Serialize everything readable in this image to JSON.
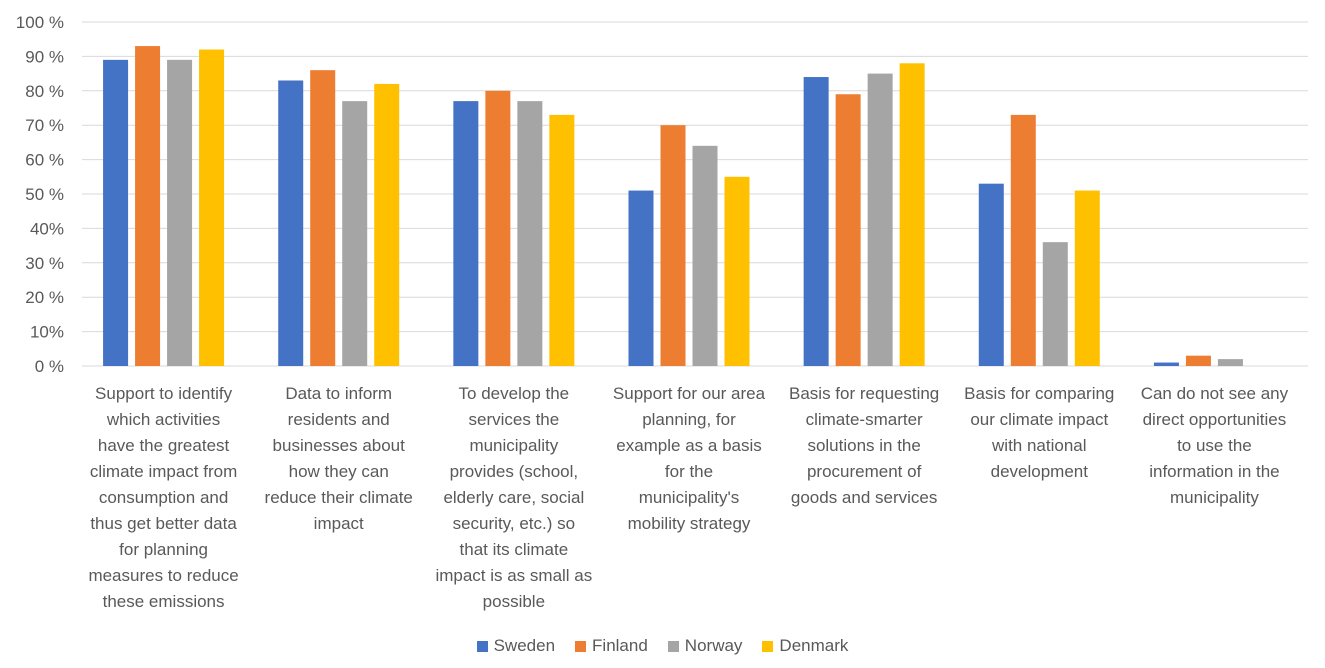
{
  "chart_data": {
    "type": "bar",
    "title": "",
    "xlabel": "",
    "ylabel": "",
    "ylim": [
      0,
      100
    ],
    "yticks": [
      "0 %",
      "10%",
      "20 %",
      "30 %",
      "40%",
      "50 %",
      "60 %",
      "70 %",
      "80 %",
      "90 %",
      "100 %"
    ],
    "grid": true,
    "legend_position": "bottom",
    "categories": [
      [
        "Support to identify",
        "which activities",
        "have the greatest",
        "climate impact from",
        "consumption and",
        "thus get better data",
        "for planning",
        "measures to reduce",
        "these emissions"
      ],
      [
        "Data to inform",
        "residents and",
        "businesses about",
        "how they can",
        "reduce their climate",
        "impact"
      ],
      [
        "To develop the",
        "services the",
        "municipality",
        "provides (school,",
        "elderly care, social",
        "security, etc.) so",
        "that its climate",
        "impact is as small as",
        "possible"
      ],
      [
        "Support for our area",
        "planning, for",
        "example as a basis",
        "for the",
        "municipality's",
        "mobility strategy"
      ],
      [
        "Basis for requesting",
        "climate-smarter",
        "solutions in the",
        "procurement of",
        "goods and services"
      ],
      [
        "Basis for comparing",
        "our climate impact",
        "with national",
        "development"
      ],
      [
        "Can do not see any",
        "direct opportunities",
        "to use the",
        "information in the",
        "municipality"
      ]
    ],
    "series": [
      {
        "name": "Sweden",
        "color": "#4472c4",
        "values": [
          89,
          83,
          77,
          51,
          84,
          53,
          1
        ]
      },
      {
        "name": "Finland",
        "color": "#ed7d31",
        "values": [
          93,
          86,
          80,
          70,
          79,
          73,
          3
        ]
      },
      {
        "name": "Norway",
        "color": "#a5a5a5",
        "values": [
          89,
          77,
          77,
          64,
          85,
          36,
          2
        ]
      },
      {
        "name": "Denmark",
        "color": "#ffc000",
        "values": [
          92,
          82,
          73,
          55,
          88,
          51,
          0
        ]
      }
    ]
  }
}
